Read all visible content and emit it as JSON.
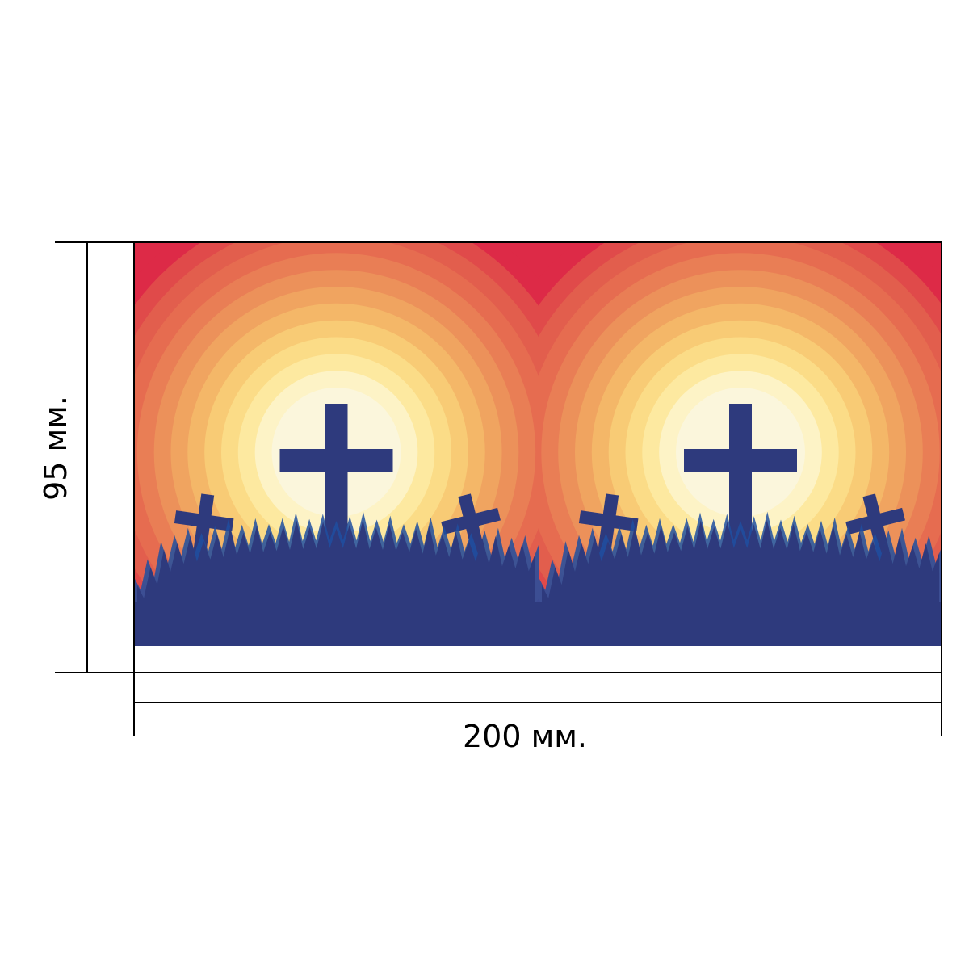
{
  "dimensions": {
    "height_label": "95 мм.",
    "width_label": "200 мм."
  },
  "artwork": {
    "panels": 2,
    "colors": {
      "sky_outer": "#dd2a47",
      "glow_rings": [
        "#dd2a47",
        "#e04a4a",
        "#e25e4d",
        "#e66c50",
        "#e97e55",
        "#ec915a",
        "#f0a460",
        "#f4b768",
        "#f8cb75",
        "#fbdc87",
        "#fde9a0",
        "#fdf3c6",
        "#fbf6dc"
      ],
      "silhouette": "#2e3a7d",
      "grass_accent": "#1f4fa0",
      "outline": "#000000"
    },
    "icons": [
      "sun-glow",
      "large-cross-icon",
      "small-cross-icon",
      "grass-silhouette"
    ]
  }
}
